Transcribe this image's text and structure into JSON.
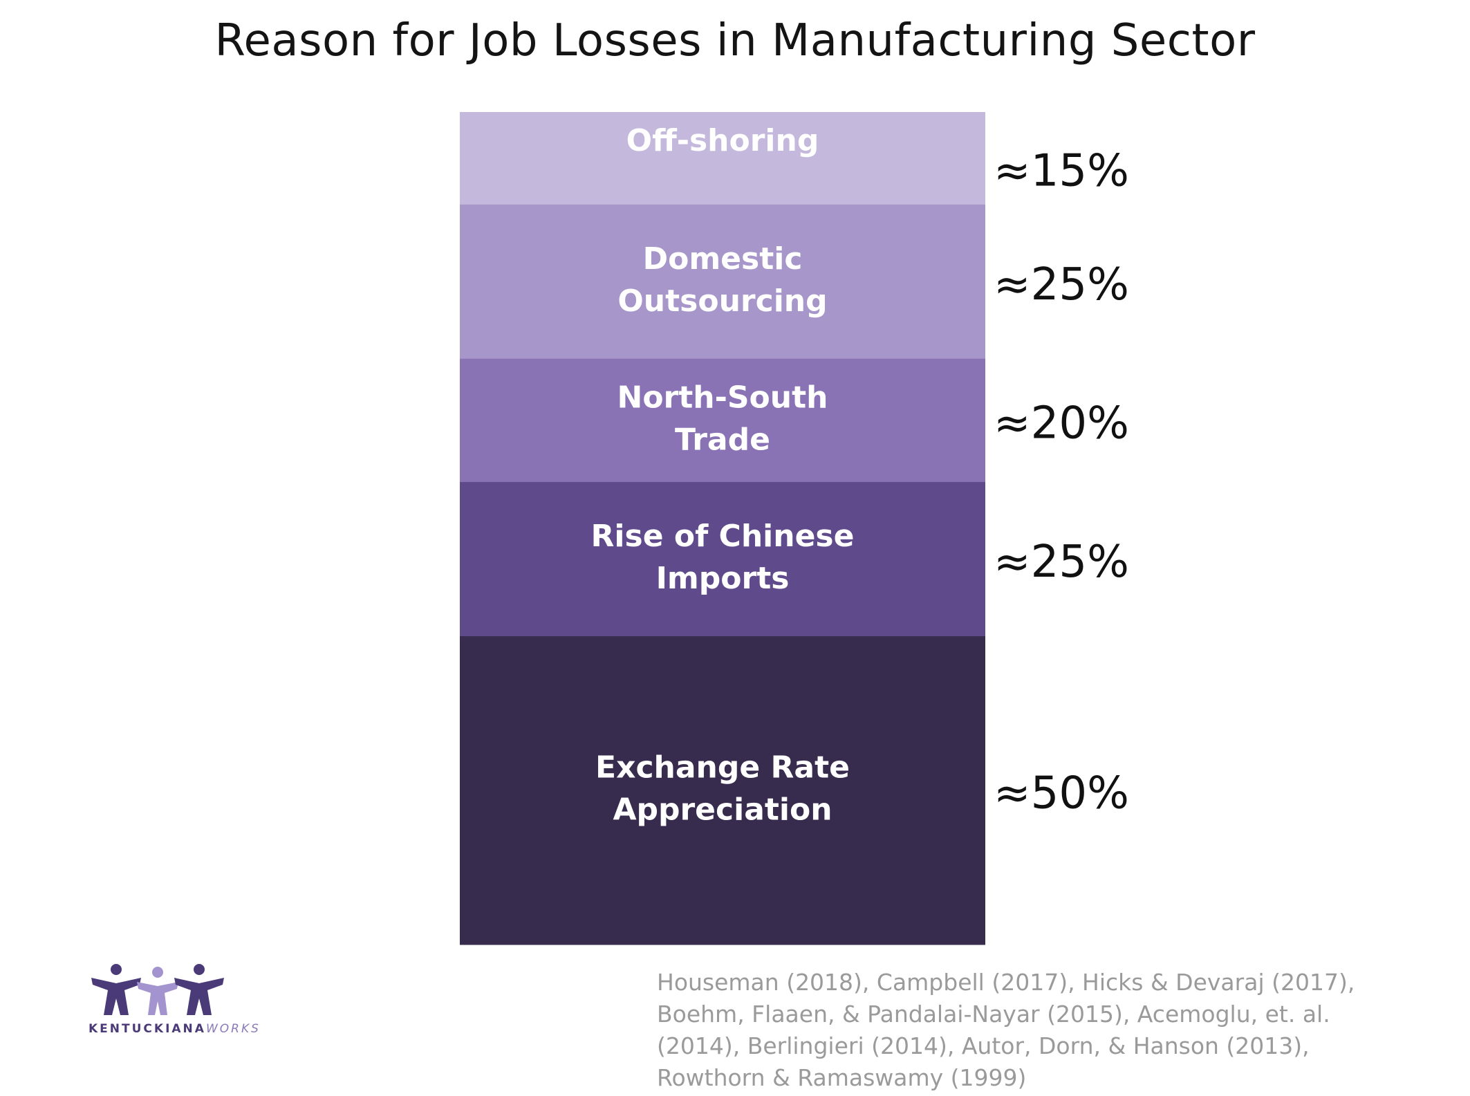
{
  "chart_data": {
    "type": "bar",
    "stacked": true,
    "title": "Reason for Job Losses in Manufacturing Sector",
    "categories": [
      "Off-shoring",
      "Domestic\nOutsourcing",
      "North-South\nTrade",
      "Rise of Chinese\nImports",
      "Exchange Rate\nAppreciation"
    ],
    "values": [
      15,
      25,
      20,
      25,
      50
    ],
    "value_labels": [
      "≈15%",
      "≈25%",
      "≈20%",
      "≈25%",
      "≈50%"
    ],
    "colors": [
      "#c4b9dc",
      "#a796c9",
      "#8973b5",
      "#5f4a8b",
      "#372b4e"
    ],
    "xlabel": "",
    "ylabel": ""
  },
  "citation": [
    "Houseman (2018), Campbell (2017), Hicks & Devaraj (2017),",
    "Boehm, Flaaen, & Pandalai-Nayar (2015), Acemoglu, et. al.",
    "(2014), Berlingieri (2014), Autor, Dorn, & Hanson (2013),",
    "Rowthorn & Ramaswamy (1999)"
  ],
  "logo": {
    "text_main": "KENTUCKIANA",
    "text_accent": "WORKS"
  }
}
